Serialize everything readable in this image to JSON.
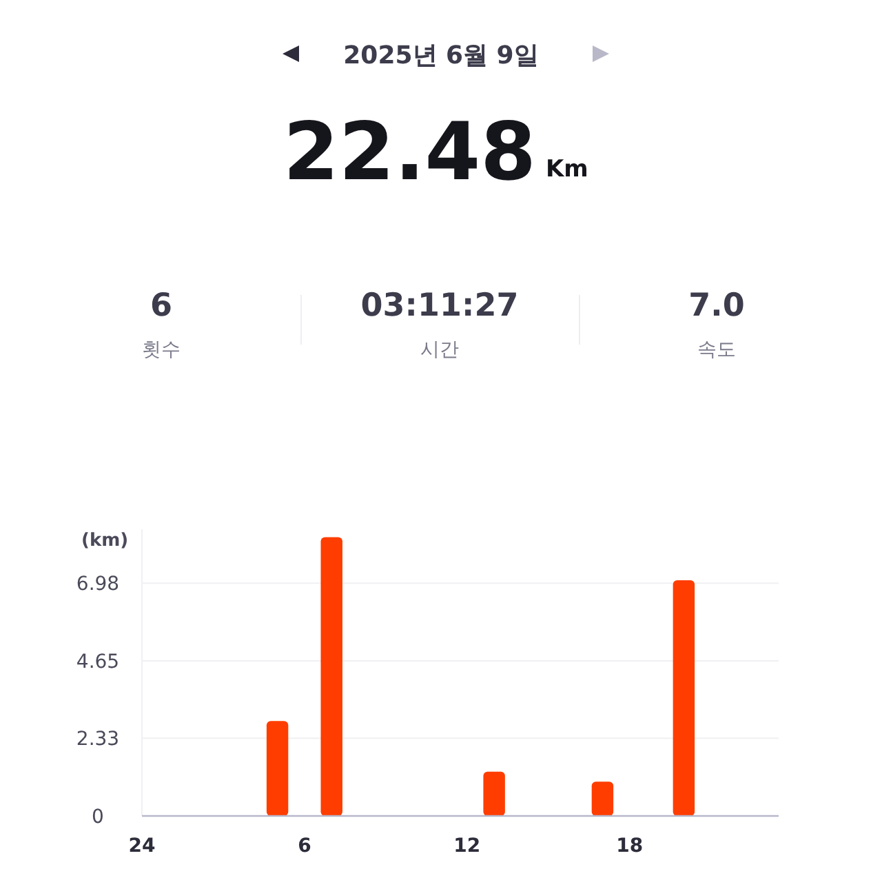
{
  "chart_data": {
    "type": "bar",
    "title": "2025년 6월 9일",
    "annotations": [
      "22.48",
      "Km",
      "6",
      "횟수",
      "03:11:27",
      "시간",
      "7.0",
      "속도"
    ],
    "ylabel": "(km)",
    "categories": [
      "24",
      null,
      null,
      null,
      null,
      null,
      "6",
      null,
      null,
      null,
      null,
      null,
      "12",
      null,
      null,
      null,
      null,
      null,
      "18",
      null,
      null,
      null,
      null,
      null
    ],
    "values": [
      null,
      null,
      null,
      null,
      null,
      2.85,
      null,
      8.36,
      null,
      null,
      null,
      null,
      null,
      1.33,
      null,
      null,
      null,
      1.03,
      null,
      null,
      7.07,
      null,
      null,
      null
    ],
    "color": "#ff3d00",
    "ylim": [
      0,
      8.6
    ],
    "yticks": [
      0,
      2.33,
      4.65,
      6.98
    ],
    "grid": "y"
  }
}
